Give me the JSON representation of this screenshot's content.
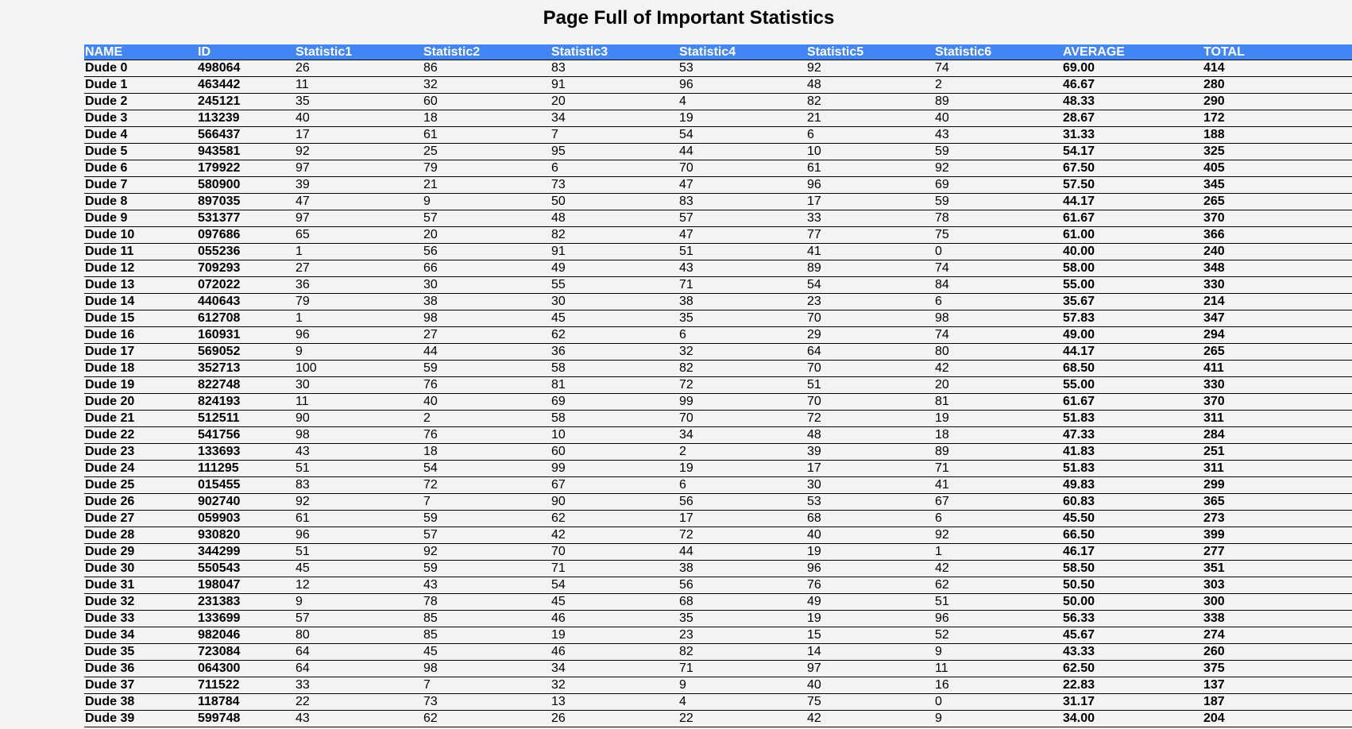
{
  "page": {
    "title": "Page Full of Important Statistics"
  },
  "table": {
    "columns": [
      "NAME",
      "ID",
      "Statistic1",
      "Statistic2",
      "Statistic3",
      "Statistic4",
      "Statistic5",
      "Statistic6",
      "AVERAGE",
      "TOTAL"
    ],
    "rows": [
      [
        "Dude 0",
        "498064",
        "26",
        "86",
        "83",
        "53",
        "92",
        "74",
        "69.00",
        "414"
      ],
      [
        "Dude 1",
        "463442",
        "11",
        "32",
        "91",
        "96",
        "48",
        "2",
        "46.67",
        "280"
      ],
      [
        "Dude 2",
        "245121",
        "35",
        "60",
        "20",
        "4",
        "82",
        "89",
        "48.33",
        "290"
      ],
      [
        "Dude 3",
        "113239",
        "40",
        "18",
        "34",
        "19",
        "21",
        "40",
        "28.67",
        "172"
      ],
      [
        "Dude 4",
        "566437",
        "17",
        "61",
        "7",
        "54",
        "6",
        "43",
        "31.33",
        "188"
      ],
      [
        "Dude 5",
        "943581",
        "92",
        "25",
        "95",
        "44",
        "10",
        "59",
        "54.17",
        "325"
      ],
      [
        "Dude 6",
        "179922",
        "97",
        "79",
        "6",
        "70",
        "61",
        "92",
        "67.50",
        "405"
      ],
      [
        "Dude 7",
        "580900",
        "39",
        "21",
        "73",
        "47",
        "96",
        "69",
        "57.50",
        "345"
      ],
      [
        "Dude 8",
        "897035",
        "47",
        "9",
        "50",
        "83",
        "17",
        "59",
        "44.17",
        "265"
      ],
      [
        "Dude 9",
        "531377",
        "97",
        "57",
        "48",
        "57",
        "33",
        "78",
        "61.67",
        "370"
      ],
      [
        "Dude 10",
        "097686",
        "65",
        "20",
        "82",
        "47",
        "77",
        "75",
        "61.00",
        "366"
      ],
      [
        "Dude 11",
        "055236",
        "1",
        "56",
        "91",
        "51",
        "41",
        "0",
        "40.00",
        "240"
      ],
      [
        "Dude 12",
        "709293",
        "27",
        "66",
        "49",
        "43",
        "89",
        "74",
        "58.00",
        "348"
      ],
      [
        "Dude 13",
        "072022",
        "36",
        "30",
        "55",
        "71",
        "54",
        "84",
        "55.00",
        "330"
      ],
      [
        "Dude 14",
        "440643",
        "79",
        "38",
        "30",
        "38",
        "23",
        "6",
        "35.67",
        "214"
      ],
      [
        "Dude 15",
        "612708",
        "1",
        "98",
        "45",
        "35",
        "70",
        "98",
        "57.83",
        "347"
      ],
      [
        "Dude 16",
        "160931",
        "96",
        "27",
        "62",
        "6",
        "29",
        "74",
        "49.00",
        "294"
      ],
      [
        "Dude 17",
        "569052",
        "9",
        "44",
        "36",
        "32",
        "64",
        "80",
        "44.17",
        "265"
      ],
      [
        "Dude 18",
        "352713",
        "100",
        "59",
        "58",
        "82",
        "70",
        "42",
        "68.50",
        "411"
      ],
      [
        "Dude 19",
        "822748",
        "30",
        "76",
        "81",
        "72",
        "51",
        "20",
        "55.00",
        "330"
      ],
      [
        "Dude 20",
        "824193",
        "11",
        "40",
        "69",
        "99",
        "70",
        "81",
        "61.67",
        "370"
      ],
      [
        "Dude 21",
        "512511",
        "90",
        "2",
        "58",
        "70",
        "72",
        "19",
        "51.83",
        "311"
      ],
      [
        "Dude 22",
        "541756",
        "98",
        "76",
        "10",
        "34",
        "48",
        "18",
        "47.33",
        "284"
      ],
      [
        "Dude 23",
        "133693",
        "43",
        "18",
        "60",
        "2",
        "39",
        "89",
        "41.83",
        "251"
      ],
      [
        "Dude 24",
        "111295",
        "51",
        "54",
        "99",
        "19",
        "17",
        "71",
        "51.83",
        "311"
      ],
      [
        "Dude 25",
        "015455",
        "83",
        "72",
        "67",
        "6",
        "30",
        "41",
        "49.83",
        "299"
      ],
      [
        "Dude 26",
        "902740",
        "92",
        "7",
        "90",
        "56",
        "53",
        "67",
        "60.83",
        "365"
      ],
      [
        "Dude 27",
        "059903",
        "61",
        "59",
        "62",
        "17",
        "68",
        "6",
        "45.50",
        "273"
      ],
      [
        "Dude 28",
        "930820",
        "96",
        "57",
        "42",
        "72",
        "40",
        "92",
        "66.50",
        "399"
      ],
      [
        "Dude 29",
        "344299",
        "51",
        "92",
        "70",
        "44",
        "19",
        "1",
        "46.17",
        "277"
      ],
      [
        "Dude 30",
        "550543",
        "45",
        "59",
        "71",
        "38",
        "96",
        "42",
        "58.50",
        "351"
      ],
      [
        "Dude 31",
        "198047",
        "12",
        "43",
        "54",
        "56",
        "76",
        "62",
        "50.50",
        "303"
      ],
      [
        "Dude 32",
        "231383",
        "9",
        "78",
        "45",
        "68",
        "49",
        "51",
        "50.00",
        "300"
      ],
      [
        "Dude 33",
        "133699",
        "57",
        "85",
        "46",
        "35",
        "19",
        "96",
        "56.33",
        "338"
      ],
      [
        "Dude 34",
        "982046",
        "80",
        "85",
        "19",
        "23",
        "15",
        "52",
        "45.67",
        "274"
      ],
      [
        "Dude 35",
        "723084",
        "64",
        "45",
        "46",
        "82",
        "14",
        "9",
        "43.33",
        "260"
      ],
      [
        "Dude 36",
        "064300",
        "64",
        "98",
        "34",
        "71",
        "97",
        "11",
        "62.50",
        "375"
      ],
      [
        "Dude 37",
        "711522",
        "33",
        "7",
        "32",
        "9",
        "40",
        "16",
        "22.83",
        "137"
      ],
      [
        "Dude 38",
        "118784",
        "22",
        "73",
        "13",
        "4",
        "75",
        "0",
        "31.17",
        "187"
      ],
      [
        "Dude 39",
        "599748",
        "43",
        "62",
        "26",
        "22",
        "42",
        "9",
        "34.00",
        "204"
      ]
    ]
  },
  "colors": {
    "header_background": "#4285f4",
    "header_text": "#ffffff",
    "page_background": "#f1f3f4"
  }
}
